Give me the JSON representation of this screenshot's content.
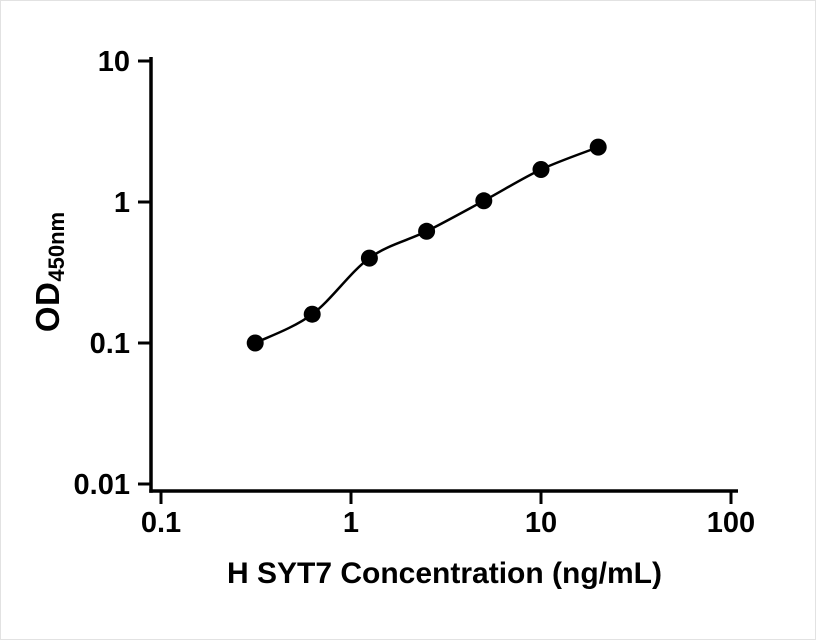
{
  "figure": {
    "background": "#ffffff"
  },
  "chart_data": {
    "type": "scatter",
    "title": "",
    "xlabel": "H SYT7 Concentration (ng/mL)",
    "ylabel": "OD",
    "ylabel_sub": "450nm",
    "xscale": "log",
    "yscale": "log",
    "xlim": [
      0.1,
      100
    ],
    "ylim": [
      0.01,
      10
    ],
    "x_ticks": [
      0.1,
      1,
      10,
      100
    ],
    "x_tick_labels": [
      "0.1",
      "1",
      "10",
      "100"
    ],
    "y_ticks": [
      0.01,
      0.1,
      1,
      10
    ],
    "y_tick_labels": [
      "0.01",
      "0.1",
      "1",
      "10"
    ],
    "x": [
      0.313,
      0.625,
      1.25,
      2.5,
      5,
      10,
      20
    ],
    "y": [
      0.1,
      0.16,
      0.4,
      0.62,
      1.02,
      1.7,
      2.45
    ],
    "curve_fit": true,
    "marker": "circle",
    "marker_color": "#000000",
    "line_color": "#000000",
    "axis_color": "#000000",
    "grid": false,
    "legend": "none"
  }
}
